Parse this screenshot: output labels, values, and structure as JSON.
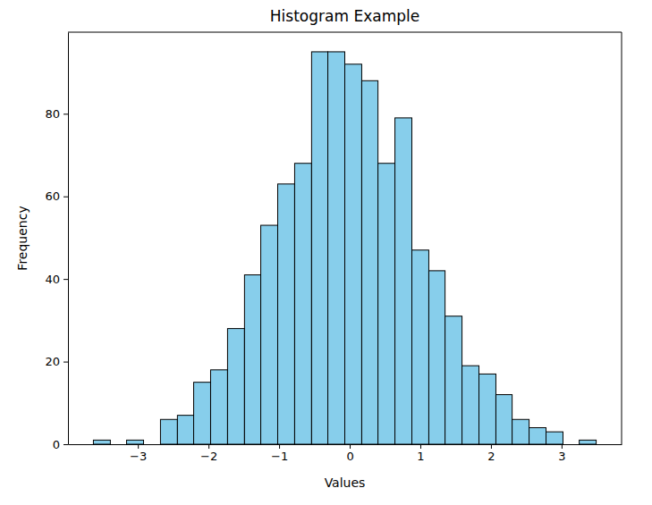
{
  "chart_data": {
    "type": "histogram",
    "title": "Histogram Example",
    "x_label": "Values",
    "y_label": "Frequency",
    "bins": [
      -3.63,
      -3.39,
      -3.16,
      -2.92,
      -2.68,
      -2.44,
      -2.21,
      -1.97,
      -1.73,
      -1.49,
      -1.26,
      -1.02,
      -0.78,
      -0.54,
      -0.31,
      -0.07,
      0.17,
      0.4,
      0.64,
      0.88,
      1.12,
      1.35,
      1.59,
      1.83,
      2.07,
      2.3,
      2.54,
      2.78,
      3.02,
      3.25,
      3.49
    ],
    "counts": [
      1,
      0,
      1,
      0,
      6,
      7,
      15,
      18,
      28,
      41,
      53,
      63,
      68,
      95,
      95,
      92,
      88,
      68,
      79,
      47,
      42,
      31,
      19,
      17,
      12,
      6,
      4,
      3,
      0,
      1
    ],
    "color": "#87ceeb",
    "xlim": [
      -3.99,
      3.85
    ],
    "ylim": [
      0,
      99.75
    ],
    "xticks": [
      {
        "value": -3,
        "label": "−3"
      },
      {
        "value": -2,
        "label": "−2"
      },
      {
        "value": -1,
        "label": "−1"
      },
      0,
      1,
      2,
      3
    ],
    "yticks": [
      0,
      20,
      40,
      60,
      80
    ],
    "grid": false
  }
}
